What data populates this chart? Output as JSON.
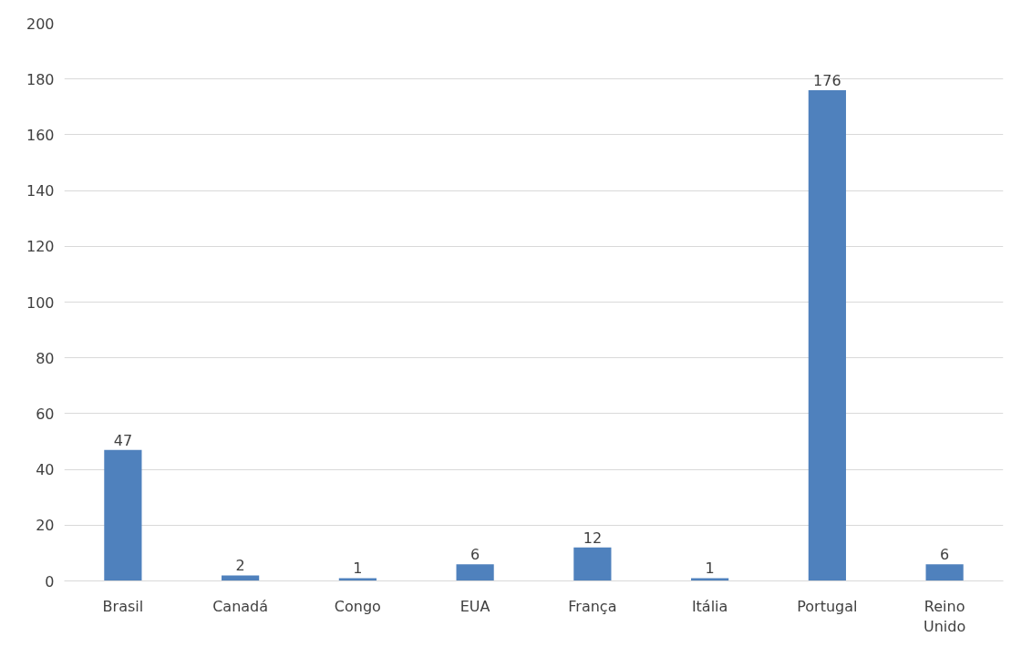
{
  "chart_data": {
    "type": "bar",
    "categories": [
      "Brasil",
      "Canadá",
      "Congo",
      "EUA",
      "França",
      "Itália",
      "Portugal",
      "Reino Unido"
    ],
    "values": [
      47,
      2,
      1,
      6,
      12,
      1,
      176,
      6
    ],
    "color": "#4f81bd",
    "ylim": [
      0,
      200
    ],
    "yticks": [
      0,
      20,
      40,
      60,
      80,
      100,
      120,
      140,
      160,
      180,
      200
    ],
    "grid": "y",
    "data_labels": true
  }
}
